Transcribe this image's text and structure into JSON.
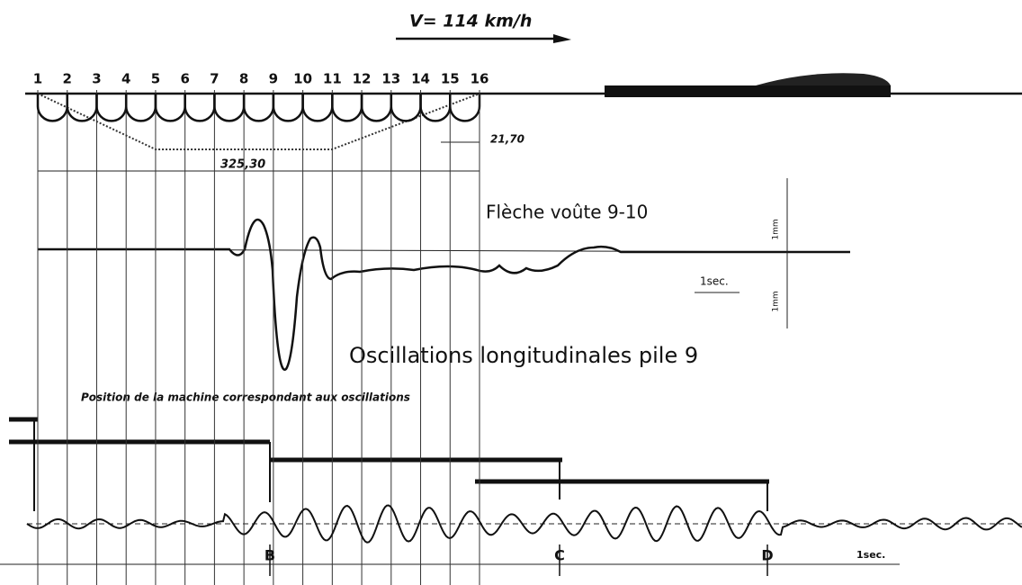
{
  "header": {
    "speed": "V= 114 km/h"
  },
  "bridge": {
    "piers": [
      "1",
      "2",
      "3",
      "4",
      "5",
      "6",
      "7",
      "8",
      "9",
      "10",
      "11",
      "12",
      "13",
      "14",
      "15",
      "16"
    ],
    "span_length": "21,70",
    "total_length": "325,30"
  },
  "trace1": {
    "title": "Flèche voûte 9-10",
    "scale_up": "1mm",
    "scale_down": "1mm",
    "time_scale": "1sec."
  },
  "trace2": {
    "title": "Oscillations longitudinales pile 9",
    "caption": "Position de la machine correspondant aux oscillations",
    "markers": [
      "B",
      "C",
      "D"
    ],
    "time_scale": "1sec."
  }
}
